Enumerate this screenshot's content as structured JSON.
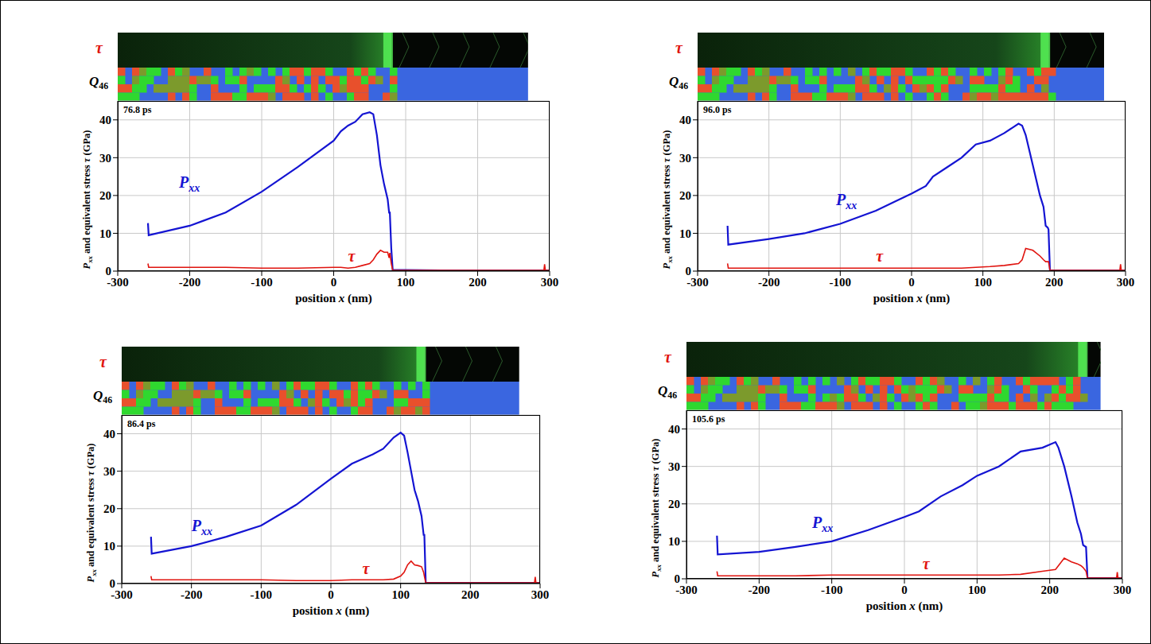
{
  "chart_data": [
    {
      "type": "line",
      "title": "76.8 ps",
      "x_label": "position x (nm)",
      "y_label": "Pxx and equivalent stress τ (GPa)",
      "image_labels": [
        "τ",
        "Q46"
      ],
      "xlim": [
        -300,
        300
      ],
      "xticks": [
        -300,
        -200,
        -100,
        0,
        100,
        200,
        300
      ],
      "ylim": [
        0,
        45
      ],
      "yticks": [
        0,
        10,
        20,
        30,
        40
      ],
      "grid": true,
      "x": [
        -258,
        -257,
        -200,
        -150,
        -100,
        -50,
        0,
        10,
        20,
        30,
        40,
        50,
        55,
        60,
        65,
        70,
        75,
        77,
        78,
        80,
        82,
        150,
        200,
        250,
        292,
        293,
        294,
        300
      ],
      "series": [
        {
          "name": "Pxx",
          "color": "#1414d2",
          "values": [
            12.7,
            9.5,
            12,
            15.5,
            21,
            27.5,
            34.5,
            37,
            38.5,
            39.5,
            41.5,
            42,
            41.5,
            36,
            28,
            23,
            19,
            15.5,
            15.5,
            6,
            0.3,
            0.2,
            0.2,
            0.2,
            0.2,
            0.2,
            0.2,
            0.2
          ]
        },
        {
          "name": "τ",
          "color": "#e0140f",
          "values": [
            2,
            1,
            1,
            1,
            0.8,
            0.8,
            1,
            1,
            0.8,
            1,
            1.5,
            2,
            3,
            4.5,
            5.5,
            5,
            5,
            3.5,
            4.8,
            2,
            0.2,
            0.2,
            0.2,
            0.2,
            0.2,
            1.8,
            0.2,
            0.2
          ]
        }
      ],
      "annotations": [
        {
          "text": "Pxx",
          "x": -215,
          "y": 22,
          "color": "#1414d2"
        },
        {
          "text": "τ",
          "x": 20,
          "y": 2.5,
          "color": "#e0140f"
        }
      ]
    },
    {
      "type": "line",
      "title": "96.0 ps",
      "x_label": "position x (nm)",
      "y_label": "Pxx and equivalent stress τ (GPa)",
      "image_labels": [
        "τ",
        "Q46"
      ],
      "xlim": [
        -300,
        300
      ],
      "xticks": [
        -300,
        -200,
        -100,
        0,
        100,
        200,
        300
      ],
      "ylim": [
        0,
        45
      ],
      "yticks": [
        0,
        10,
        20,
        30,
        40
      ],
      "grid": true,
      "x": [
        -258,
        -257,
        -200,
        -150,
        -100,
        -50,
        0,
        20,
        30,
        50,
        70,
        90,
        110,
        130,
        150,
        155,
        160,
        170,
        180,
        185,
        188,
        191,
        192,
        194,
        250,
        292,
        293,
        294,
        300
      ],
      "series": [
        {
          "name": "Pxx",
          "color": "#1414d2",
          "values": [
            12,
            7,
            8.5,
            10,
            12.5,
            16,
            20.5,
            22.5,
            25,
            27.5,
            30,
            33.5,
            34.5,
            36.5,
            39,
            38.5,
            36,
            28,
            20,
            17,
            12,
            11.5,
            11,
            0.2,
            0.2,
            0.2,
            0.2,
            0.2,
            0.2
          ]
        },
        {
          "name": "τ",
          "color": "#e0140f",
          "values": [
            2,
            0.8,
            0.8,
            0.8,
            0.8,
            0.8,
            0.8,
            0.8,
            0.8,
            0.8,
            0.8,
            1,
            1.2,
            1.5,
            2,
            3,
            6,
            5.5,
            4,
            3,
            2.5,
            2.5,
            2.5,
            0.2,
            0.2,
            0.2,
            1.8,
            0.2,
            0.2
          ]
        }
      ],
      "annotations": [
        {
          "text": "Pxx",
          "x": -106,
          "y": 17.5,
          "color": "#1414d2"
        },
        {
          "text": "τ",
          "x": -50,
          "y": 2.5,
          "color": "#e0140f"
        }
      ]
    },
    {
      "type": "line",
      "title": "86.4 ps",
      "x_label": "position x (nm)",
      "y_label": "Pxx and equivalent stress τ (GPa)",
      "image_labels": [
        "τ",
        "Q46"
      ],
      "xlim": [
        -300,
        300
      ],
      "xticks": [
        -300,
        -200,
        -100,
        0,
        100,
        200,
        300
      ],
      "ylim": [
        0,
        45
      ],
      "yticks": [
        0,
        10,
        20,
        30,
        40
      ],
      "grid": true,
      "x": [
        -258,
        -257,
        -200,
        -150,
        -100,
        -50,
        0,
        30,
        60,
        75,
        90,
        100,
        105,
        110,
        115,
        120,
        125,
        130,
        133,
        134,
        136,
        200,
        250,
        292,
        293,
        294,
        300
      ],
      "series": [
        {
          "name": "Pxx",
          "color": "#1414d2",
          "values": [
            12.5,
            8,
            10,
            12.5,
            15.5,
            21,
            28,
            32,
            34.5,
            36,
            39,
            40.3,
            39.5,
            35,
            30,
            25,
            22,
            18,
            13,
            13,
            0.2,
            0.2,
            0.2,
            0.2,
            0.2,
            0.2,
            0.2
          ]
        },
        {
          "name": "τ",
          "color": "#e0140f",
          "values": [
            2,
            1,
            1,
            1,
            1,
            0.8,
            0.8,
            1,
            1,
            1,
            1.2,
            2,
            3,
            5,
            6,
            5,
            4.8,
            4.5,
            3,
            2,
            0.2,
            0.2,
            0.2,
            0.2,
            1.8,
            0.2,
            0.2
          ]
        }
      ],
      "annotations": [
        {
          "text": "Pxx",
          "x": -200,
          "y": 14,
          "color": "#1414d2"
        },
        {
          "text": "τ",
          "x": 45,
          "y": 2.5,
          "color": "#e0140f"
        }
      ]
    },
    {
      "type": "line",
      "title": "105.6 ps",
      "x_label": "position x (nm)",
      "y_label": "Pxx and equivalent stress τ (GPa)",
      "image_labels": [
        "τ",
        "Q46"
      ],
      "xlim": [
        -300,
        300
      ],
      "xticks": [
        -300,
        -200,
        -100,
        0,
        100,
        200,
        300
      ],
      "ylim": [
        0,
        45
      ],
      "yticks": [
        0,
        10,
        20,
        30,
        40
      ],
      "grid": true,
      "x": [
        -258,
        -257,
        -200,
        -150,
        -100,
        -50,
        0,
        20,
        50,
        80,
        100,
        130,
        160,
        190,
        208,
        212,
        220,
        230,
        238,
        243,
        246,
        250,
        252,
        292,
        293,
        294,
        300
      ],
      "series": [
        {
          "name": "Pxx",
          "color": "#1414d2",
          "values": [
            11.5,
            6.5,
            7.2,
            8.5,
            10,
            13,
            16.5,
            18,
            22,
            25,
            27.5,
            30,
            34,
            35,
            36.5,
            35,
            30,
            22,
            15,
            12,
            9,
            8.5,
            0.2,
            0.2,
            0.2,
            0.2,
            0.2
          ]
        },
        {
          "name": "τ",
          "color": "#e0140f",
          "values": [
            2,
            0.8,
            0.8,
            0.8,
            1,
            1,
            1,
            1,
            1,
            1,
            1,
            1,
            1.2,
            2,
            2.5,
            3.5,
            5.5,
            4.5,
            4,
            3.5,
            3,
            2,
            0.2,
            0.2,
            1.8,
            0.2,
            0.2
          ]
        }
      ],
      "annotations": [
        {
          "text": "Pxx",
          "x": -127,
          "y": 13.6,
          "color": "#1414d2"
        },
        {
          "text": "τ",
          "x": 25,
          "y": 2.5,
          "color": "#e0140f"
        }
      ]
    }
  ]
}
